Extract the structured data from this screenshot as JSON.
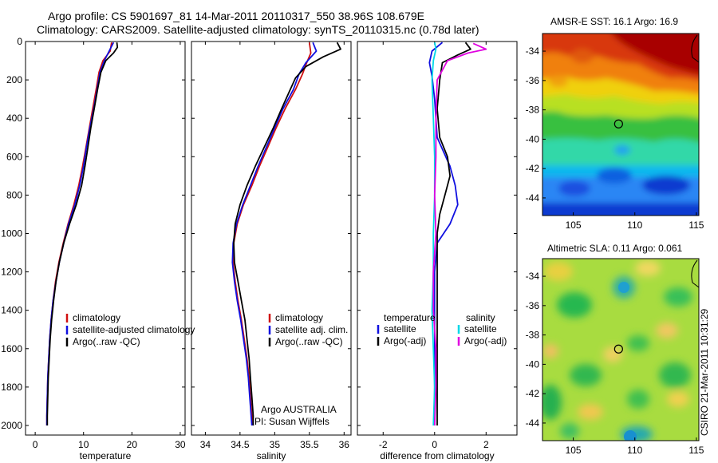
{
  "figure": {
    "title_line1": "Argo profile: CS 5901697_81 14-Mar-2011 20110317_550 38.96S 108.679E",
    "title_line2": "Climatology: CARS2009. Satellite-adjusted climatology: synTS_20110315.nc (0.78d later)",
    "credit": "CSIRO 21-Mar-2011 10:31:29"
  },
  "colors": {
    "climatology": "#d01010",
    "satellite": "#1010e0",
    "argo": "#000000",
    "salinity_sat": "#00d8e8",
    "salinity_argo": "#e000e0"
  },
  "chart_data": [
    {
      "type": "line",
      "panel": "temperature",
      "xlabel": "temperature",
      "xlim": [
        -2,
        31
      ],
      "xticks": [
        0,
        10,
        20,
        30
      ],
      "ylim": [
        2050,
        0
      ],
      "yticks": [
        0,
        200,
        400,
        600,
        800,
        1000,
        1200,
        1400,
        1600,
        1800,
        2000
      ],
      "series": [
        {
          "name": "climatology",
          "color": "#d01010",
          "points": [
            [
              15.8,
              5
            ],
            [
              15.5,
              50
            ],
            [
              14.0,
              100
            ],
            [
              13.2,
              160
            ],
            [
              12.6,
              250
            ],
            [
              11.9,
              350
            ],
            [
              11.2,
              450
            ],
            [
              10.5,
              550
            ],
            [
              9.8,
              650
            ],
            [
              9.0,
              750
            ],
            [
              8.0,
              850
            ],
            [
              6.8,
              950
            ],
            [
              5.8,
              1050
            ],
            [
              4.9,
              1150
            ],
            [
              4.2,
              1250
            ],
            [
              3.7,
              1350
            ],
            [
              3.3,
              1450
            ],
            [
              3.0,
              1550
            ],
            [
              2.8,
              1650
            ],
            [
              2.6,
              1750
            ],
            [
              2.5,
              1850
            ],
            [
              2.4,
              1950
            ],
            [
              2.4,
              2000
            ]
          ]
        },
        {
          "name": "satellite-adjusted climatology",
          "color": "#1010e0",
          "points": [
            [
              16.2,
              5
            ],
            [
              15.3,
              50
            ],
            [
              14.3,
              100
            ],
            [
              13.4,
              160
            ],
            [
              12.8,
              250
            ],
            [
              12.1,
              350
            ],
            [
              11.3,
              450
            ],
            [
              10.6,
              550
            ],
            [
              10.0,
              650
            ],
            [
              9.2,
              750
            ],
            [
              8.2,
              850
            ],
            [
              6.9,
              950
            ],
            [
              5.9,
              1050
            ],
            [
              5.0,
              1150
            ],
            [
              4.3,
              1250
            ],
            [
              3.7,
              1350
            ],
            [
              3.3,
              1450
            ],
            [
              3.0,
              1550
            ],
            [
              2.8,
              1650
            ],
            [
              2.6,
              1750
            ],
            [
              2.5,
              1850
            ],
            [
              2.4,
              1950
            ],
            [
              2.4,
              2000
            ]
          ]
        },
        {
          "name": "Argo(..raw -QC)",
          "color": "#000000",
          "points": [
            [
              16.9,
              5
            ],
            [
              17.0,
              30
            ],
            [
              16.2,
              60
            ],
            [
              14.6,
              100
            ],
            [
              13.6,
              160
            ],
            [
              12.9,
              250
            ],
            [
              12.2,
              350
            ],
            [
              11.5,
              450
            ],
            [
              10.9,
              550
            ],
            [
              10.3,
              650
            ],
            [
              9.6,
              750
            ],
            [
              8.5,
              850
            ],
            [
              7.1,
              950
            ],
            [
              5.9,
              1050
            ],
            [
              5.0,
              1150
            ],
            [
              4.3,
              1250
            ],
            [
              3.8,
              1350
            ],
            [
              3.4,
              1450
            ],
            [
              3.1,
              1550
            ],
            [
              2.9,
              1650
            ],
            [
              2.7,
              1750
            ],
            [
              2.6,
              1850
            ],
            [
              2.5,
              1950
            ],
            [
              2.5,
              2000
            ]
          ]
        }
      ],
      "legend": [
        "climatology",
        "satellite-adjusted climatology",
        "Argo(..raw -QC)"
      ]
    },
    {
      "type": "line",
      "panel": "salinity",
      "xlabel": "salinity",
      "xlim": [
        33.8,
        36.1
      ],
      "xticks": [
        34,
        34.5,
        35,
        35.5,
        36
      ],
      "ylim": [
        2050,
        0
      ],
      "series": [
        {
          "name": "climatology",
          "color": "#d01010",
          "points": [
            [
              35.5,
              5
            ],
            [
              35.52,
              60
            ],
            [
              35.45,
              120
            ],
            [
              35.4,
              170
            ],
            [
              35.3,
              250
            ],
            [
              35.15,
              350
            ],
            [
              35.02,
              450
            ],
            [
              34.9,
              550
            ],
            [
              34.78,
              650
            ],
            [
              34.67,
              750
            ],
            [
              34.55,
              850
            ],
            [
              34.46,
              950
            ],
            [
              34.41,
              1050
            ],
            [
              34.4,
              1150
            ],
            [
              34.43,
              1250
            ],
            [
              34.47,
              1350
            ],
            [
              34.52,
              1450
            ],
            [
              34.56,
              1550
            ],
            [
              34.6,
              1650
            ],
            [
              34.63,
              1750
            ],
            [
              34.65,
              1850
            ],
            [
              34.67,
              1950
            ],
            [
              34.68,
              2000
            ]
          ]
        },
        {
          "name": "satellite adj. clim.",
          "color": "#1010e0",
          "points": [
            [
              35.55,
              5
            ],
            [
              35.6,
              50
            ],
            [
              35.45,
              110
            ],
            [
              35.35,
              170
            ],
            [
              35.27,
              250
            ],
            [
              35.12,
              350
            ],
            [
              35.0,
              450
            ],
            [
              34.88,
              550
            ],
            [
              34.76,
              650
            ],
            [
              34.65,
              750
            ],
            [
              34.54,
              850
            ],
            [
              34.45,
              950
            ],
            [
              34.4,
              1050
            ],
            [
              34.39,
              1150
            ],
            [
              34.42,
              1250
            ],
            [
              34.46,
              1350
            ],
            [
              34.51,
              1450
            ],
            [
              34.55,
              1550
            ],
            [
              34.59,
              1650
            ],
            [
              34.62,
              1750
            ],
            [
              34.64,
              1850
            ],
            [
              34.66,
              1950
            ],
            [
              34.67,
              2000
            ]
          ]
        },
        {
          "name": "Argo(..raw -QC)",
          "color": "#000000",
          "points": [
            [
              35.9,
              5
            ],
            [
              35.95,
              40
            ],
            [
              35.7,
              80
            ],
            [
              35.45,
              130
            ],
            [
              35.3,
              190
            ],
            [
              35.2,
              270
            ],
            [
              35.1,
              350
            ],
            [
              34.98,
              450
            ],
            [
              34.85,
              550
            ],
            [
              34.72,
              650
            ],
            [
              34.6,
              750
            ],
            [
              34.5,
              850
            ],
            [
              34.43,
              950
            ],
            [
              34.41,
              1050
            ],
            [
              34.42,
              1150
            ],
            [
              34.47,
              1250
            ],
            [
              34.52,
              1350
            ],
            [
              34.57,
              1450
            ],
            [
              34.6,
              1550
            ],
            [
              34.63,
              1650
            ],
            [
              34.65,
              1750
            ],
            [
              34.67,
              1850
            ],
            [
              34.69,
              1950
            ],
            [
              34.69,
              2000
            ]
          ]
        }
      ],
      "legend": [
        "climatology",
        "satellite adj. clim.",
        "Argo(..raw -QC)"
      ],
      "annotation_line1": "Argo AUSTRALIA",
      "annotation_line2": "PI: Susan Wijffels"
    },
    {
      "type": "line",
      "panel": "difference",
      "xlabel": "difference from climatology",
      "xlim": [
        -3,
        3.2
      ],
      "xticks": [
        -2,
        0,
        2
      ],
      "ylim": [
        2050,
        0
      ],
      "series": [
        {
          "name": "temperature satellite",
          "color": "#1010e0",
          "points": [
            [
              0.3,
              5
            ],
            [
              -0.1,
              50
            ],
            [
              -0.2,
              110
            ],
            [
              -0.1,
              180
            ],
            [
              0.0,
              300
            ],
            [
              0.1,
              500
            ],
            [
              0.6,
              650
            ],
            [
              0.8,
              750
            ],
            [
              0.9,
              850
            ],
            [
              0.6,
              950
            ],
            [
              0.1,
              1050
            ],
            [
              0.0,
              1200
            ],
            [
              0.0,
              1500
            ],
            [
              0.0,
              2000
            ]
          ]
        },
        {
          "name": "temperature Argo(-adj)",
          "color": "#000000",
          "points": [
            [
              1.2,
              5
            ],
            [
              1.4,
              40
            ],
            [
              0.9,
              70
            ],
            [
              0.3,
              110
            ],
            [
              0.2,
              200
            ],
            [
              0.1,
              350
            ],
            [
              0.2,
              500
            ],
            [
              0.5,
              600
            ],
            [
              0.6,
              700
            ],
            [
              0.4,
              800
            ],
            [
              0.2,
              900
            ],
            [
              0.1,
              1000
            ],
            [
              0.1,
              1100
            ],
            [
              0.1,
              1300
            ],
            [
              0.1,
              1500
            ],
            [
              0.1,
              1700
            ],
            [
              0.1,
              1900
            ],
            [
              0.1,
              2000
            ]
          ]
        },
        {
          "name": "salinity satellite",
          "color": "#00d8e8",
          "points": [
            [
              0.0,
              5
            ],
            [
              0.05,
              40
            ],
            [
              -0.05,
              100
            ],
            [
              -0.1,
              200
            ],
            [
              -0.05,
              400
            ],
            [
              0.0,
              600
            ],
            [
              0.0,
              800
            ],
            [
              -0.05,
              1000
            ],
            [
              -0.05,
              1200
            ],
            [
              -0.1,
              1400
            ],
            [
              -0.05,
              1600
            ],
            [
              0.0,
              1800
            ],
            [
              -0.05,
              2000
            ]
          ]
        },
        {
          "name": "salinity Argo(-adj)",
          "color": "#e000e0",
          "points": [
            [
              1.5,
              10
            ],
            [
              2.0,
              40
            ],
            [
              1.3,
              60
            ],
            [
              0.5,
              100
            ],
            [
              0.1,
              200
            ],
            [
              0.05,
              400
            ],
            [
              0.05,
              600
            ],
            [
              0.0,
              800
            ],
            [
              0.05,
              1000
            ],
            [
              -0.05,
              1200
            ],
            [
              -0.05,
              1400
            ],
            [
              0.05,
              1600
            ],
            [
              0.05,
              1800
            ],
            [
              0.0,
              2000
            ]
          ]
        }
      ],
      "legend_left_header": "temperature",
      "legend_left": [
        "satellite",
        "Argo(-adj)"
      ],
      "legend_right_header": "salinity",
      "legend_right": [
        "satellite",
        "Argo(-adj)"
      ]
    },
    {
      "type": "heatmap",
      "panel": "sst-map",
      "title": "AMSR-E SST: 16.1  Argo: 16.9",
      "xlim": [
        102.5,
        115.2
      ],
      "ylim": [
        -45.2,
        -32.8
      ],
      "xticks": [
        105,
        110,
        115
      ],
      "yticks": [
        -34,
        -36,
        -38,
        -40,
        -42,
        -44
      ],
      "marker": [
        108.679,
        -38.96
      ]
    },
    {
      "type": "heatmap",
      "panel": "sla-map",
      "title": "Altimetric SLA: 0.11  Argo: 0.061",
      "xlim": [
        102.5,
        115.2
      ],
      "ylim": [
        -45.2,
        -32.8
      ],
      "xticks": [
        105,
        110,
        115
      ],
      "yticks": [
        -34,
        -36,
        -38,
        -40,
        -42,
        -44
      ],
      "marker": [
        108.679,
        -38.96
      ]
    }
  ]
}
